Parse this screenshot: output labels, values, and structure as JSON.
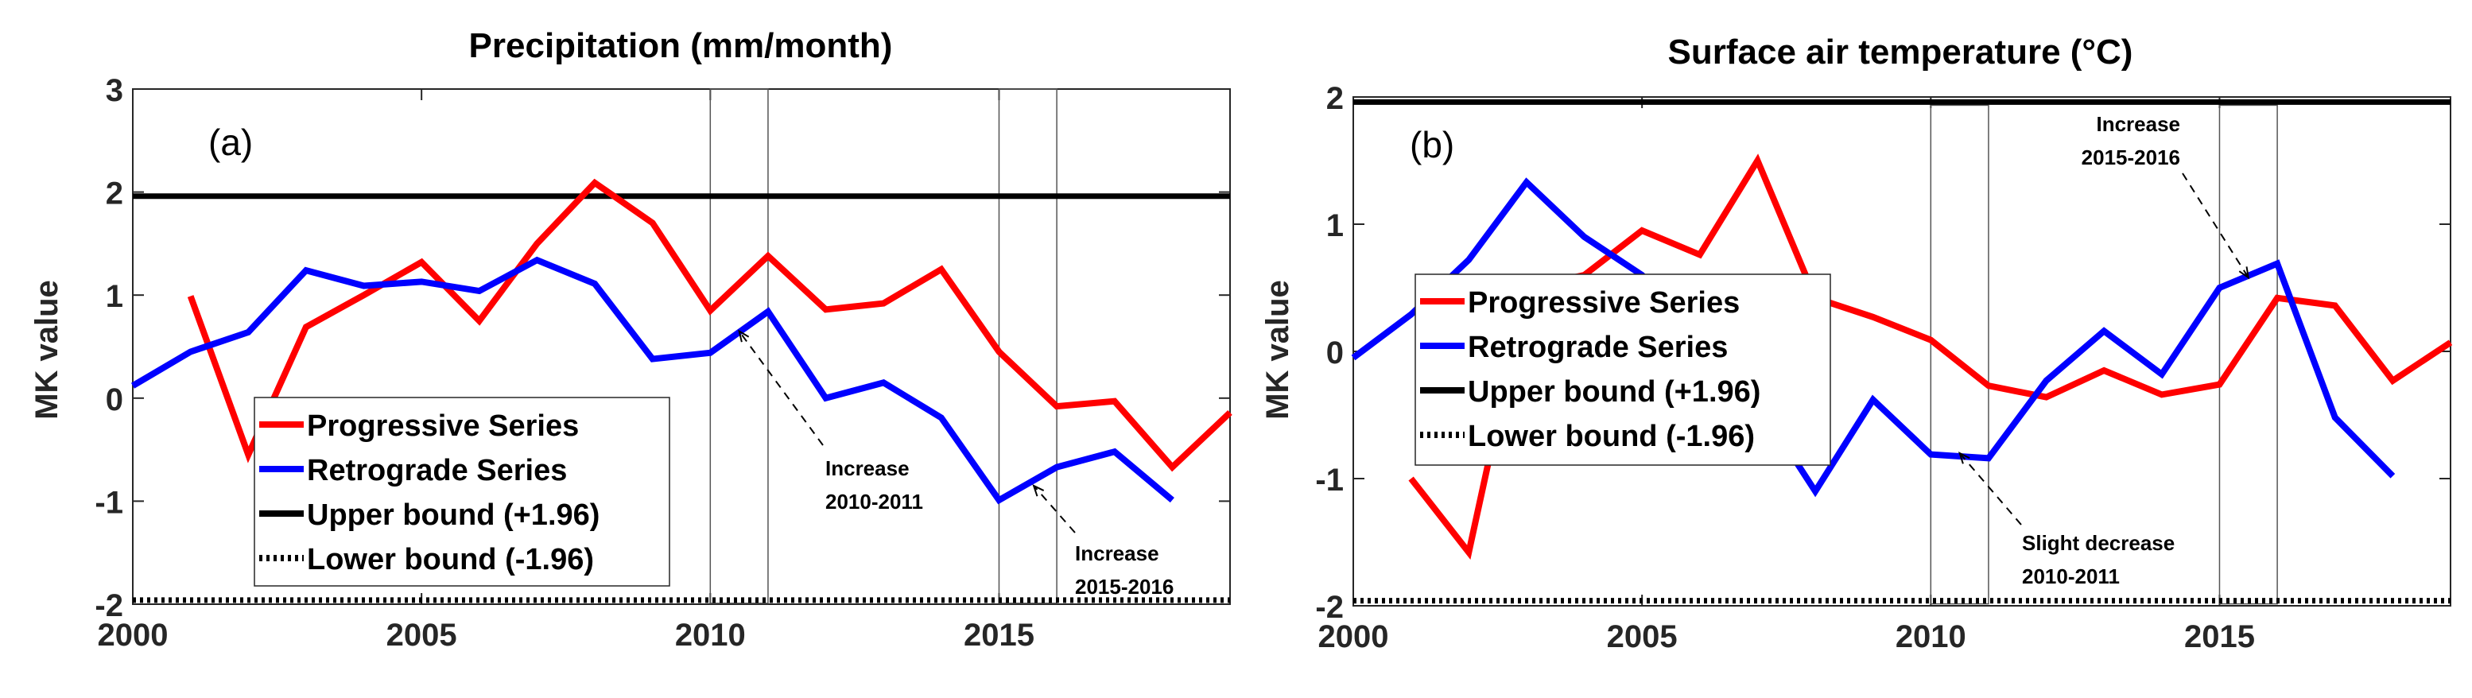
{
  "chart_data": [
    {
      "type": "line",
      "panel_label": "(a)",
      "title": "Precipitation (mm/month)",
      "xlabel": "",
      "ylabel": "MK value",
      "xlim": [
        2000,
        2019
      ],
      "ylim": [
        -2,
        3
      ],
      "xticks": [
        "2000",
        "2005",
        "2010",
        "2015"
      ],
      "yticks": [
        "-2",
        "-1",
        "0",
        "1",
        "2",
        "3"
      ],
      "grid": false,
      "legend_position": "lower-left",
      "series": [
        {
          "name": "Progressive Series",
          "color": "#ff0000",
          "x": [
            2001,
            2002,
            2003,
            2004,
            2005,
            2006,
            2007,
            2008,
            2009,
            2010,
            2011,
            2012,
            2013,
            2014,
            2015,
            2016,
            2017,
            2018,
            2019
          ],
          "y": [
            0.99,
            -0.55,
            0.69,
            1.0,
            1.32,
            0.75,
            1.5,
            2.09,
            1.7,
            0.85,
            1.38,
            0.86,
            0.92,
            1.25,
            0.45,
            -0.08,
            -0.03,
            -0.67,
            -0.14
          ]
        },
        {
          "name": "Retrograde Series",
          "color": "#0000ff",
          "x": [
            2000,
            2001,
            2002,
            2003,
            2004,
            2005,
            2006,
            2007,
            2008,
            2009,
            2010,
            2011,
            2012,
            2013,
            2014,
            2015,
            2016,
            2017,
            2018
          ],
          "y": [
            0.12,
            0.45,
            0.64,
            1.24,
            1.09,
            1.13,
            1.04,
            1.34,
            1.11,
            0.38,
            0.44,
            0.84,
            0.0,
            0.15,
            -0.19,
            -0.99,
            -0.67,
            -0.52,
            -0.99
          ]
        },
        {
          "name": "Upper bound (+1.96)",
          "color": "#000000",
          "value": 1.96,
          "style": "solid"
        },
        {
          "name": "Lower bound (-1.96)",
          "color": "#000000",
          "value": -1.96,
          "style": "dotted"
        }
      ],
      "highlight_periods": [
        [
          2010,
          2011
        ],
        [
          2015,
          2016
        ]
      ],
      "annotations": [
        {
          "lines": [
            "Increase",
            "2010-2011"
          ],
          "target": [
            2010.5,
            0.65
          ]
        },
        {
          "lines": [
            "Increase",
            "2015-2016"
          ],
          "target": [
            2015.6,
            -0.85
          ]
        }
      ]
    },
    {
      "type": "line",
      "panel_label": "(b)",
      "title": "Surface air temperature (°C)",
      "xlabel": "",
      "ylabel": "MK value",
      "xlim": [
        2000,
        2019
      ],
      "ylim": [
        -2,
        2
      ],
      "xticks": [
        "2000",
        "2005",
        "2010",
        "2015"
      ],
      "yticks": [
        "-2",
        "-1",
        "0",
        "1",
        "2"
      ],
      "grid": false,
      "legend_position": "center-left",
      "series": [
        {
          "name": "Progressive Series",
          "color": "#ff0000",
          "x": [
            2001,
            2002,
            2003,
            2004,
            2005,
            2006,
            2007,
            2008,
            2009,
            2010,
            2011,
            2012,
            2013,
            2014,
            2015,
            2016,
            2017,
            2018,
            2019
          ],
          "y": [
            -1.0,
            -1.58,
            0.5,
            0.6,
            0.95,
            0.76,
            1.5,
            0.42,
            0.27,
            0.09,
            -0.27,
            -0.36,
            -0.15,
            -0.34,
            -0.26,
            0.42,
            0.36,
            -0.23,
            0.07
          ]
        },
        {
          "name": "Retrograde Series",
          "color": "#0000ff",
          "x": [
            2000,
            2001,
            2002,
            2003,
            2004,
            2005,
            2006,
            2007,
            2008,
            2009,
            2010,
            2011,
            2012,
            2013,
            2014,
            2015,
            2016,
            2017,
            2018
          ],
          "y": [
            -0.05,
            0.29,
            0.72,
            1.33,
            0.9,
            0.6,
            0.1,
            -0.4,
            -1.1,
            -0.38,
            -0.81,
            -0.84,
            -0.23,
            0.16,
            -0.18,
            0.5,
            0.69,
            -0.52,
            -0.98
          ]
        },
        {
          "name": "Upper bound (+1.96)",
          "color": "#000000",
          "value": 1.96,
          "style": "solid"
        },
        {
          "name": "Lower bound (-1.96)",
          "color": "#000000",
          "value": -1.96,
          "style": "dotted"
        }
      ],
      "highlight_periods": [
        [
          2010,
          2011
        ],
        [
          2015,
          2016
        ]
      ],
      "annotations": [
        {
          "lines": [
            "Slight decrease",
            "2010-2011"
          ],
          "target": [
            2010.5,
            -0.8
          ]
        },
        {
          "lines": [
            "Increase",
            "2015-2016"
          ],
          "target": [
            2015.5,
            0.58
          ]
        }
      ]
    }
  ]
}
